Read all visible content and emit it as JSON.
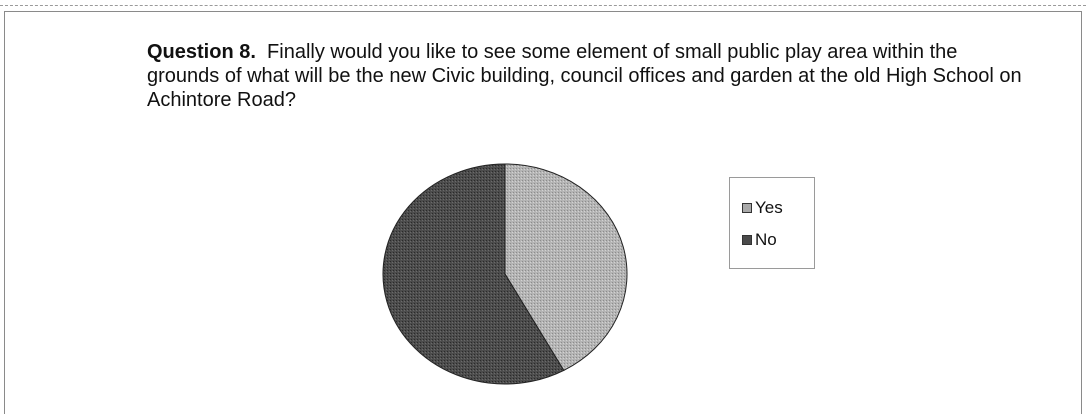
{
  "question": {
    "label": "Question 8.",
    "text": "Finally would you like to see some element of small public play area within the grounds of what will be the new Civic building, council offices and garden at the old High School on Achintore Road?"
  },
  "chart_data": {
    "type": "pie",
    "categories": [
      "Yes",
      "No"
    ],
    "values": [
      42,
      58
    ],
    "colors": [
      "#a9a9a9",
      "#4a4a4a"
    ],
    "legend": "right",
    "title": "",
    "xlabel": "",
    "ylabel": ""
  }
}
